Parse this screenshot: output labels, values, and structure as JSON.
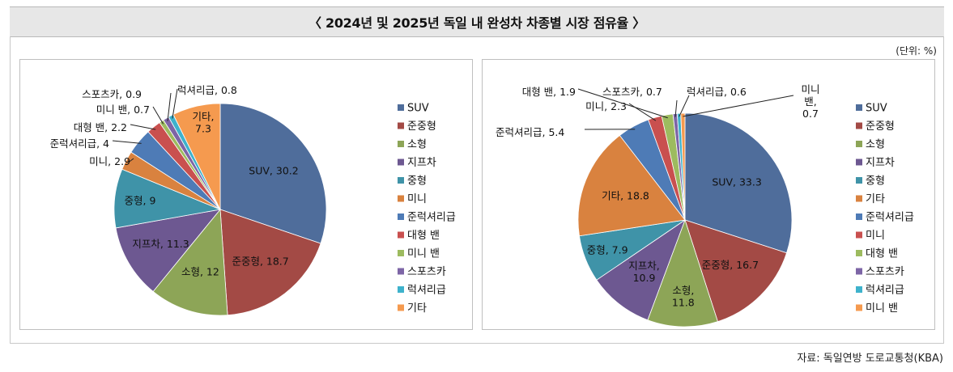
{
  "title": "〈 2024년 및 2025년 독일 내 완성차 차종별 시장 점유율 〉",
  "unit_label": "(단위: %)",
  "source": "자료: 독일연방 도로교통청(KBA)",
  "chart_data": [
    {
      "type": "pie",
      "slices": [
        {
          "name": "SUV",
          "label": "SUV, 30.2",
          "value": 30.2,
          "color": "#4f6d9b"
        },
        {
          "name": "준중형",
          "label": "준중형, 18.7",
          "value": 18.7,
          "color": "#a34a45"
        },
        {
          "name": "소형",
          "label": "소형, 12",
          "value": 12,
          "color": "#8da557"
        },
        {
          "name": "지프차",
          "label": "지프차, 11.3",
          "value": 11.3,
          "color": "#6d5891"
        },
        {
          "name": "중형",
          "label": "중형, 9",
          "value": 9,
          "color": "#3f93a8"
        },
        {
          "name": "미니",
          "label": "미니, 2.9",
          "value": 2.9,
          "color": "#d9823f"
        },
        {
          "name": "준럭셔리급",
          "label": "준럭셔리급, 4",
          "value": 4,
          "color": "#4e7bb6"
        },
        {
          "name": "대형 밴",
          "label": "대형 밴, 2.2",
          "value": 2.2,
          "color": "#c9504f"
        },
        {
          "name": "미니 밴",
          "label": "미니 밴, 0.7",
          "value": 0.7,
          "color": "#9dbb5f"
        },
        {
          "name": "스포츠카",
          "label": "스포츠카, 0.9",
          "value": 0.9,
          "color": "#7d65a6"
        },
        {
          "name": "럭셔리급",
          "label": "럭셔리급, 0.8",
          "value": 0.8,
          "color": "#3eb2cc"
        },
        {
          "name": "기타",
          "label": "기타, 7.3",
          "value": 7.3,
          "color": "#f59a4f"
        }
      ]
    },
    {
      "type": "pie",
      "slices": [
        {
          "name": "SUV",
          "label": "SUV, 33.3",
          "value": 33.3,
          "color": "#4f6d9b"
        },
        {
          "name": "준중형",
          "label": "준중형, 16.7",
          "value": 16.7,
          "color": "#a34a45"
        },
        {
          "name": "소형",
          "label": "소형, 11.8",
          "value": 11.8,
          "color": "#8da557"
        },
        {
          "name": "지프차",
          "label": "지프차, 10.9",
          "value": 10.9,
          "color": "#6d5891"
        },
        {
          "name": "중형",
          "label": "중형, 7.9",
          "value": 7.9,
          "color": "#3f93a8"
        },
        {
          "name": "기타",
          "label": "기타, 18.8",
          "value": 18.8,
          "color": "#d9823f"
        },
        {
          "name": "준럭셔리급",
          "label": "준럭셔리급, 5.4",
          "value": 5.4,
          "color": "#4e7bb6"
        },
        {
          "name": "미니",
          "label": "미니, 2.3",
          "value": 2.3,
          "color": "#c9504f"
        },
        {
          "name": "대형 밴",
          "label": "대형 밴, 1.9",
          "value": 1.9,
          "color": "#9dbb5f"
        },
        {
          "name": "스포츠카",
          "label": "스포츠카, 0.7",
          "value": 0.7,
          "color": "#7d65a6"
        },
        {
          "name": "럭셔리급",
          "label": "럭셔리급, 0.6",
          "value": 0.6,
          "color": "#3eb2cc"
        },
        {
          "name": "미니 밴",
          "label": "미니 밴, 0.7",
          "value": 0.7,
          "color": "#f59a4f"
        }
      ]
    }
  ]
}
